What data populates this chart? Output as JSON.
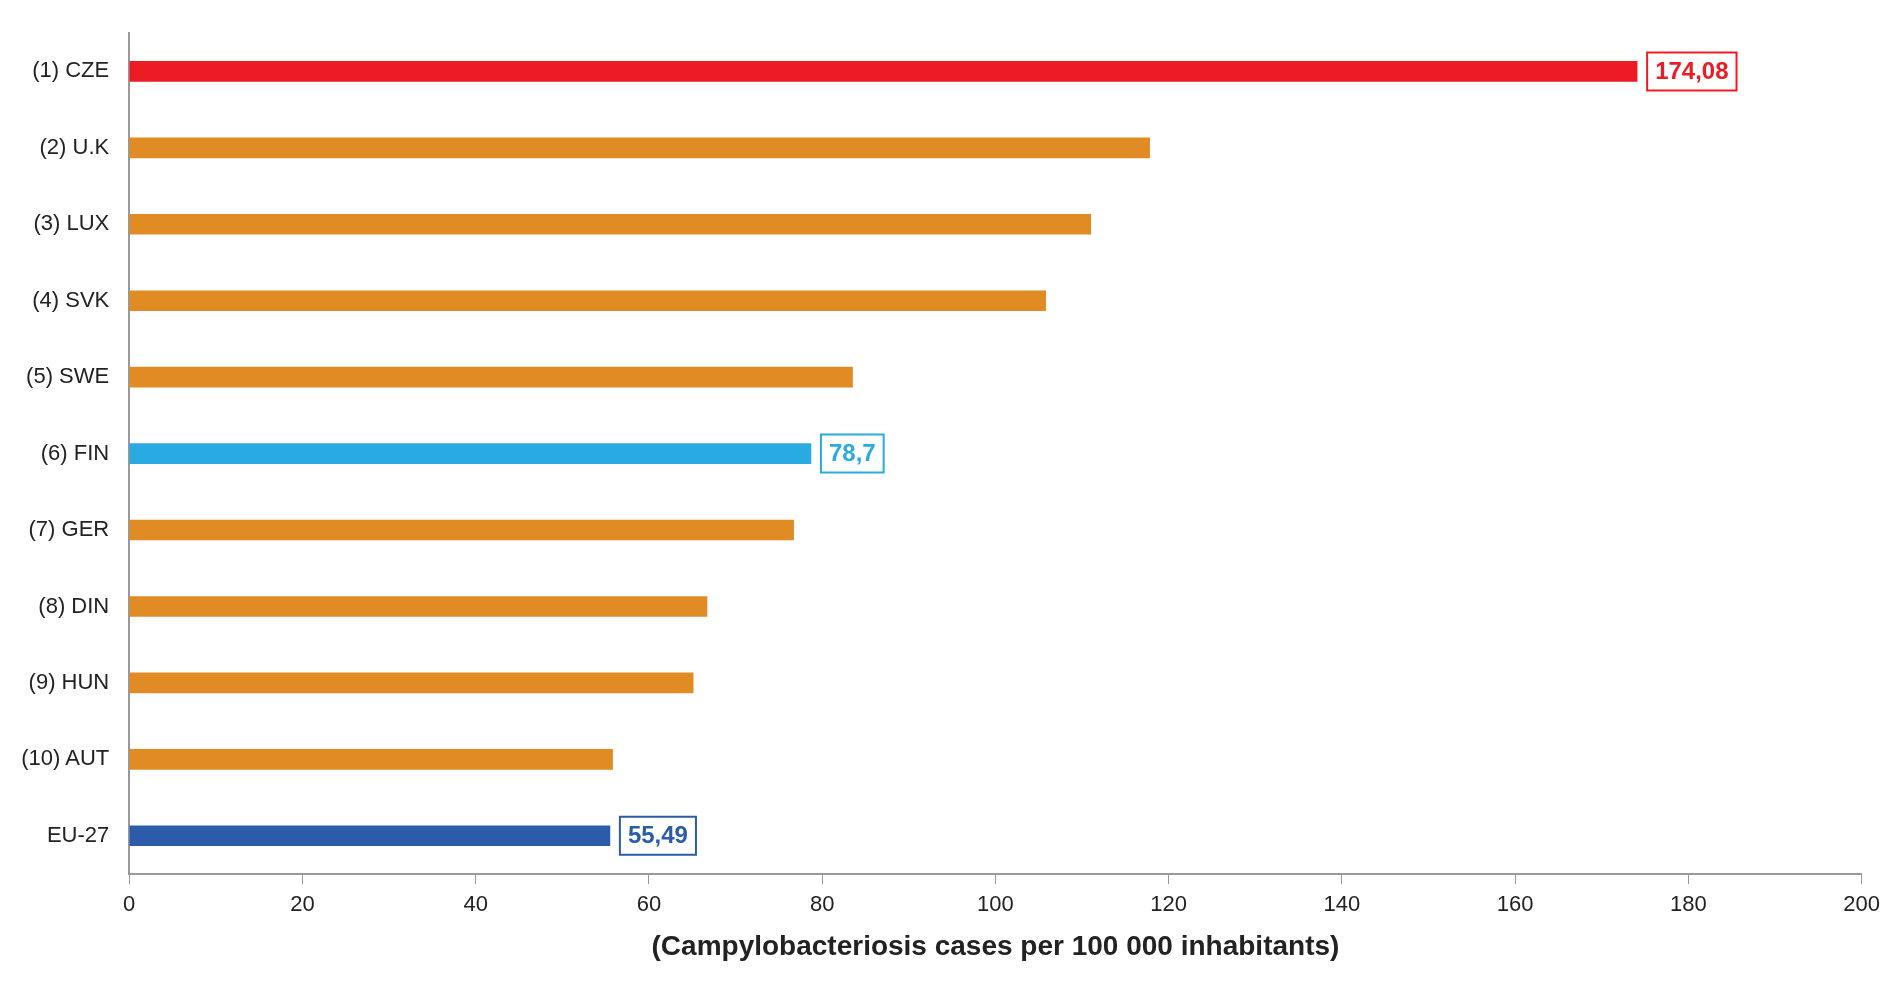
{
  "chart_data": {
    "type": "bar",
    "orientation": "horizontal",
    "xlabel": "(Campylobacteriosis cases per 100 000 inhabitants)",
    "categories": [
      "(1) CZE",
      "(2) U.K",
      "(3) LUX",
      "(4) SVK",
      "(5) SWE",
      "(6) FIN",
      "(7) GER",
      "(8) DIN",
      "(9) HUN",
      "(10) AUT",
      "EU-27"
    ],
    "values": [
      174.08,
      117.8,
      111.0,
      105.8,
      83.5,
      78.7,
      76.7,
      66.7,
      65.1,
      55.8,
      55.49
    ],
    "colors": [
      "#ed1c24",
      "#e18b24",
      "#e18b24",
      "#e18b24",
      "#e18b24",
      "#29abe2",
      "#e18b24",
      "#e18b24",
      "#e18b24",
      "#e18b24",
      "#2a5caa"
    ],
    "value_labels": [
      "174,08",
      null,
      null,
      null,
      null,
      "78,7",
      null,
      null,
      null,
      null,
      "55,49"
    ],
    "xlim": [
      0,
      200
    ],
    "xticks": [
      0,
      20,
      40,
      60,
      80,
      100,
      120,
      140,
      160,
      180,
      200
    ],
    "grid": false,
    "legend": false
  }
}
